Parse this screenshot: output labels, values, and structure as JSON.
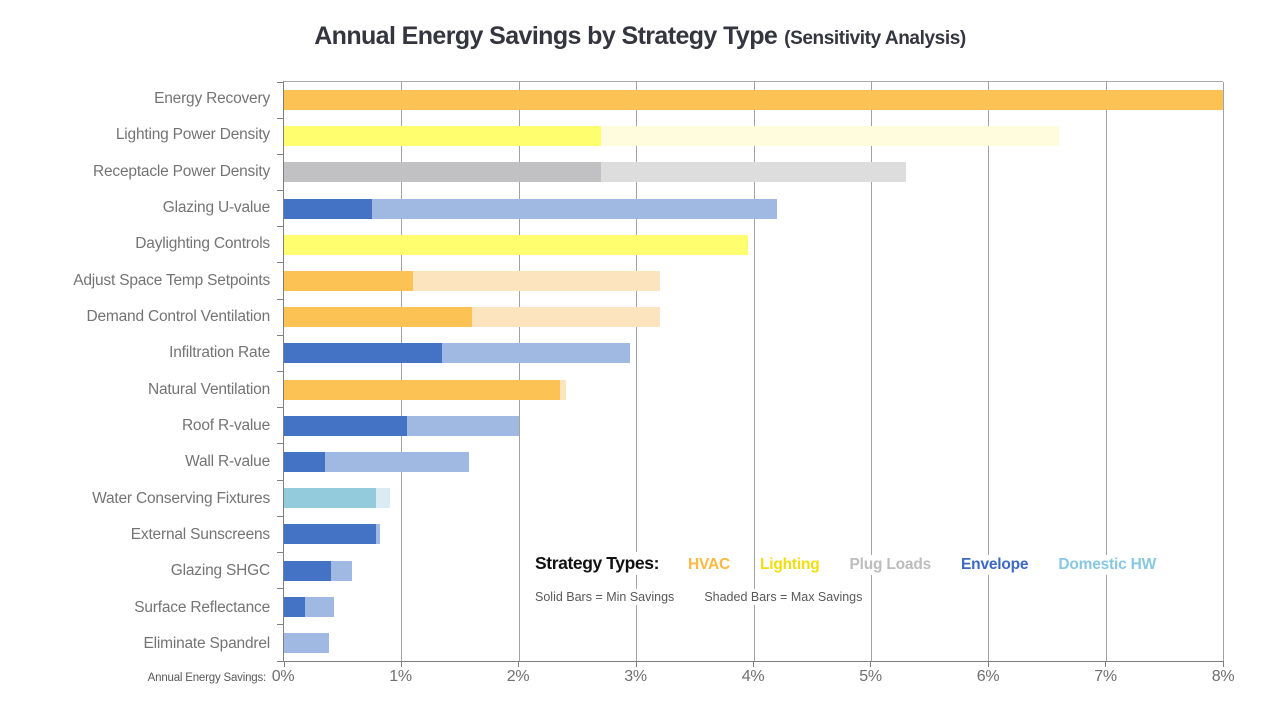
{
  "title": {
    "main": "Annual Energy Savings by Strategy Type",
    "suffix": "(Sensitivity Analysis)"
  },
  "axis": {
    "name_label": "Annual Energy Savings:",
    "tick_labels": [
      "0%",
      "1%",
      "2%",
      "3%",
      "4%",
      "5%",
      "6%",
      "7%",
      "8%"
    ],
    "min": 0,
    "max": 8
  },
  "legend": {
    "heading": "Strategy Types:",
    "items": [
      {
        "label": "HVAC",
        "color": "#FBB942"
      },
      {
        "label": "Lighting",
        "color": "#F2DE0C"
      },
      {
        "label": "Plug Loads",
        "color": "#BDBDBD"
      },
      {
        "label": "Envelope",
        "color": "#3C68C5"
      },
      {
        "label": "Domestic HW",
        "color": "#87C8E0"
      }
    ],
    "note_solid": "Solid Bars = Min Savings",
    "note_shaded": "Shaded Bars = Max Savings"
  },
  "palette": {
    "HVAC": {
      "solid": "#FDC254",
      "shaded": "#FCE4BE"
    },
    "Lighting": {
      "solid": "#FEFE6E",
      "shaded": "#FEFCDC"
    },
    "Plug Loads": {
      "solid": "#C1C1C3",
      "shaded": "#DDDDDE"
    },
    "Envelope": {
      "solid": "#4472C4",
      "shaded": "#A0B9E2"
    },
    "Domestic HW": {
      "solid": "#93CBDC",
      "shaded": "#D9EBF3"
    }
  },
  "chart_data": {
    "type": "bar",
    "orientation": "horizontal",
    "title": "Annual Energy Savings by Strategy Type (Sensitivity Analysis)",
    "xlabel": "Annual Energy Savings",
    "ylabel": "",
    "xlim": [
      0,
      8
    ],
    "x_tick_labels": [
      "0%",
      "1%",
      "2%",
      "3%",
      "4%",
      "5%",
      "6%",
      "7%",
      "8%"
    ],
    "grid": "vertical",
    "legend_position": "inside-lower-right",
    "units": "percent",
    "categories": [
      "Energy Recovery",
      "Lighting Power Density",
      "Receptacle Power Density",
      "Glazing U-value",
      "Daylighting Controls",
      "Adjust Space Temp Setpoints",
      "Demand Control Ventilation",
      "Infiltration Rate",
      "Natural Ventilation",
      "Roof R-value",
      "Wall R-value",
      "Water Conserving Fixtures",
      "External Sunscreens",
      "Glazing SHGC",
      "Surface Reflectance",
      "Eliminate Spandrel"
    ],
    "category_types": [
      "HVAC",
      "Lighting",
      "Plug Loads",
      "Envelope",
      "Lighting",
      "HVAC",
      "HVAC",
      "Envelope",
      "HVAC",
      "Envelope",
      "Envelope",
      "Domestic HW",
      "Envelope",
      "Envelope",
      "Envelope",
      "Envelope"
    ],
    "series": [
      {
        "name": "Min Savings (solid)",
        "values": [
          8.0,
          2.7,
          2.7,
          0.75,
          3.95,
          1.1,
          1.6,
          1.35,
          2.35,
          1.05,
          0.35,
          0.78,
          0.78,
          0.4,
          0.18,
          0.0
        ]
      },
      {
        "name": "Max Savings (shaded)",
        "values": [
          8.0,
          6.6,
          5.3,
          4.2,
          3.95,
          3.2,
          3.2,
          2.95,
          2.4,
          2.0,
          1.58,
          0.9,
          0.82,
          0.58,
          0.43,
          0.38
        ]
      }
    ]
  }
}
